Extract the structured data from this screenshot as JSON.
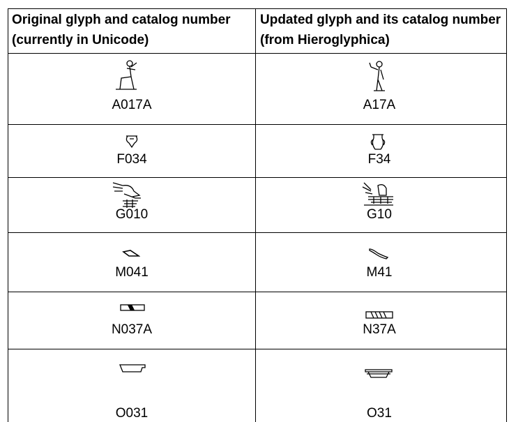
{
  "table": {
    "headers": [
      "Original glyph and catalog number (currently in Unicode)",
      "Updated glyph and its catalog number (from Hieroglyphica)"
    ],
    "rows": [
      [
        "A017A",
        "A17A"
      ],
      [
        "F034",
        "F34"
      ],
      [
        "G010",
        "G10"
      ],
      [
        "M041",
        "M41"
      ],
      [
        "N037A",
        "N37A"
      ],
      [
        "O031",
        "O31"
      ]
    ]
  }
}
